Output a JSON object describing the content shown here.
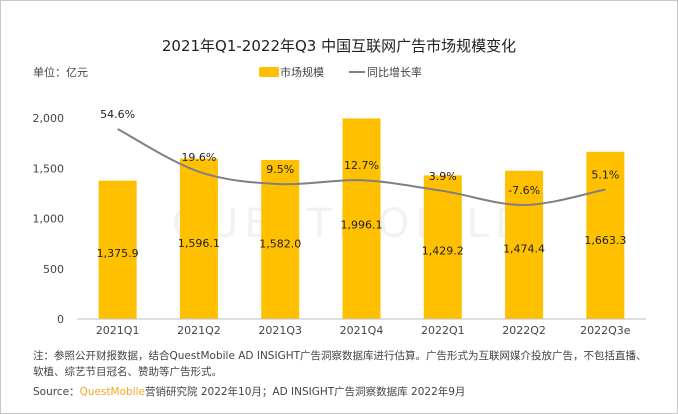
{
  "chart_data": {
    "type": "bar+line",
    "title": "2021年Q1-2022年Q3 中国互联网广告市场规模变化",
    "unit_label": "单位：亿元",
    "categories": [
      "2021Q1",
      "2021Q2",
      "2021Q3",
      "2021Q4",
      "2022Q1",
      "2022Q2",
      "2022Q3e"
    ],
    "series": [
      {
        "name": "市场规模",
        "type": "bar",
        "values": [
          1375.9,
          1596.1,
          1582.0,
          1996.1,
          1429.2,
          1474.4,
          1663.3
        ],
        "labels": [
          "1,375.9",
          "1,596.1",
          "1,582.0",
          "1,996.1",
          "1,429.2",
          "1,474.4",
          "1,663.3"
        ],
        "color": "#ffc000"
      },
      {
        "name": "同比增长率",
        "type": "line",
        "smooth": true,
        "values": [
          54.6,
          19.6,
          9.5,
          12.7,
          3.9,
          -7.6,
          5.1
        ],
        "labels": [
          "54.6%",
          "19.6%",
          "9.5%",
          "12.7%",
          "3.9%",
          "-7.6%",
          "5.1%"
        ],
        "color": "#808080"
      }
    ],
    "yticks": [
      "0",
      "500",
      "1,000",
      "1,500",
      "2,000"
    ],
    "ylim": [
      0,
      2000
    ],
    "legend": "top-center",
    "grid": false
  },
  "watermark": "QUESTMOBILE",
  "note": "注：参照公开财报数据，结合QuestMobile AD INSIGHT广告洞察数据库进行估算。广告形式为互联网媒介投放广告，不包括直播、软植、综艺节目冠名、赞助等广告形式。",
  "source": {
    "prefix": "Source：",
    "brand": "QuestMobile",
    "rest": "营销研究院 2022年10月；AD INSIGHT广告洞察数据库 2022年9月"
  }
}
